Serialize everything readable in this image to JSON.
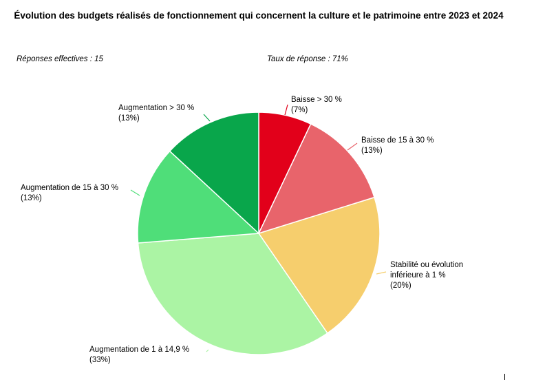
{
  "chart_data": {
    "type": "pie",
    "title": "Évolution des budgets réalisés de fonctionnement qui concernent la culture et le patrimoine entre 2023 et 2024",
    "responses_label": "Réponses effectives : 15",
    "rate_label": "Taux de réponse : 71%",
    "slices": [
      {
        "label_lines": [
          "Baisse > 30 %",
          "(7%)"
        ],
        "value": 7,
        "color": "#e2001a"
      },
      {
        "label_lines": [
          "Baisse de 15 à 30 %",
          "(13%)"
        ],
        "value": 13,
        "color": "#e8646b"
      },
      {
        "label_lines": [
          "Stabilité ou évolution",
          "inférieure à 1 %",
          "(20%)"
        ],
        "value": 20,
        "color": "#f6ce6d"
      },
      {
        "label_lines": [
          "Augmentation de 1 à 14,9 %",
          "(33%)"
        ],
        "value": 33,
        "color": "#abf4a4"
      },
      {
        "label_lines": [
          "Augmentation de 15 à 30 %",
          "(13%)"
        ],
        "value": 13,
        "color": "#4fde79"
      },
      {
        "label_lines": [
          "Augmentation > 30 %",
          "(13%)"
        ],
        "value": 13,
        "color": "#09a64b"
      }
    ]
  }
}
